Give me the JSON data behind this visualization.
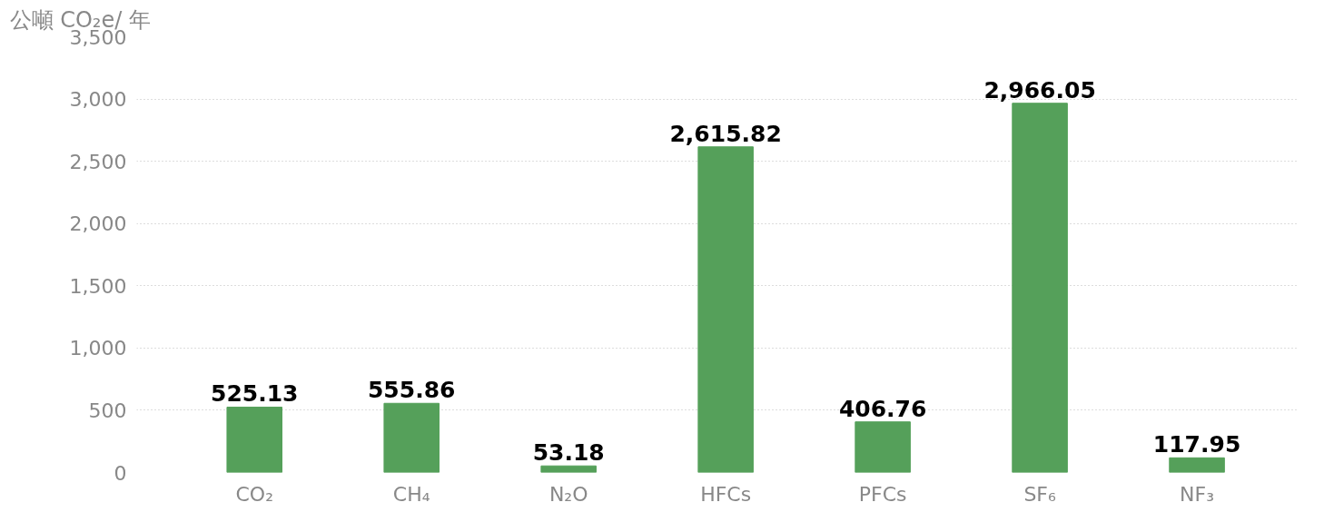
{
  "chart_data": {
    "type": "bar",
    "ylabel": "公噸 CO₂e/ 年",
    "categories": [
      "CO₂",
      "CH₄",
      "N₂O",
      "HFCs",
      "PFCs",
      "SF₆",
      "NF₃"
    ],
    "values": [
      525.13,
      555.86,
      53.18,
      2615.82,
      406.76,
      2966.05,
      117.95
    ],
    "value_labels": [
      "525.13",
      "555.86",
      "53.18",
      "2,615.82",
      "406.76",
      "2,966.05",
      "117.95"
    ],
    "color": "#55a05a",
    "ylim": [
      0,
      3500
    ],
    "yticks": [
      {
        "value": 0,
        "label": "0"
      },
      {
        "value": 500,
        "label": "500"
      },
      {
        "value": 1000,
        "label": "1,000"
      },
      {
        "value": 1500,
        "label": "1,500"
      },
      {
        "value": 2000,
        "label": "2,000"
      },
      {
        "value": 2500,
        "label": "2,500"
      },
      {
        "value": 3000,
        "label": "3,000"
      },
      {
        "value": 3500,
        "label": "3,500"
      }
    ],
    "grid": "y"
  }
}
